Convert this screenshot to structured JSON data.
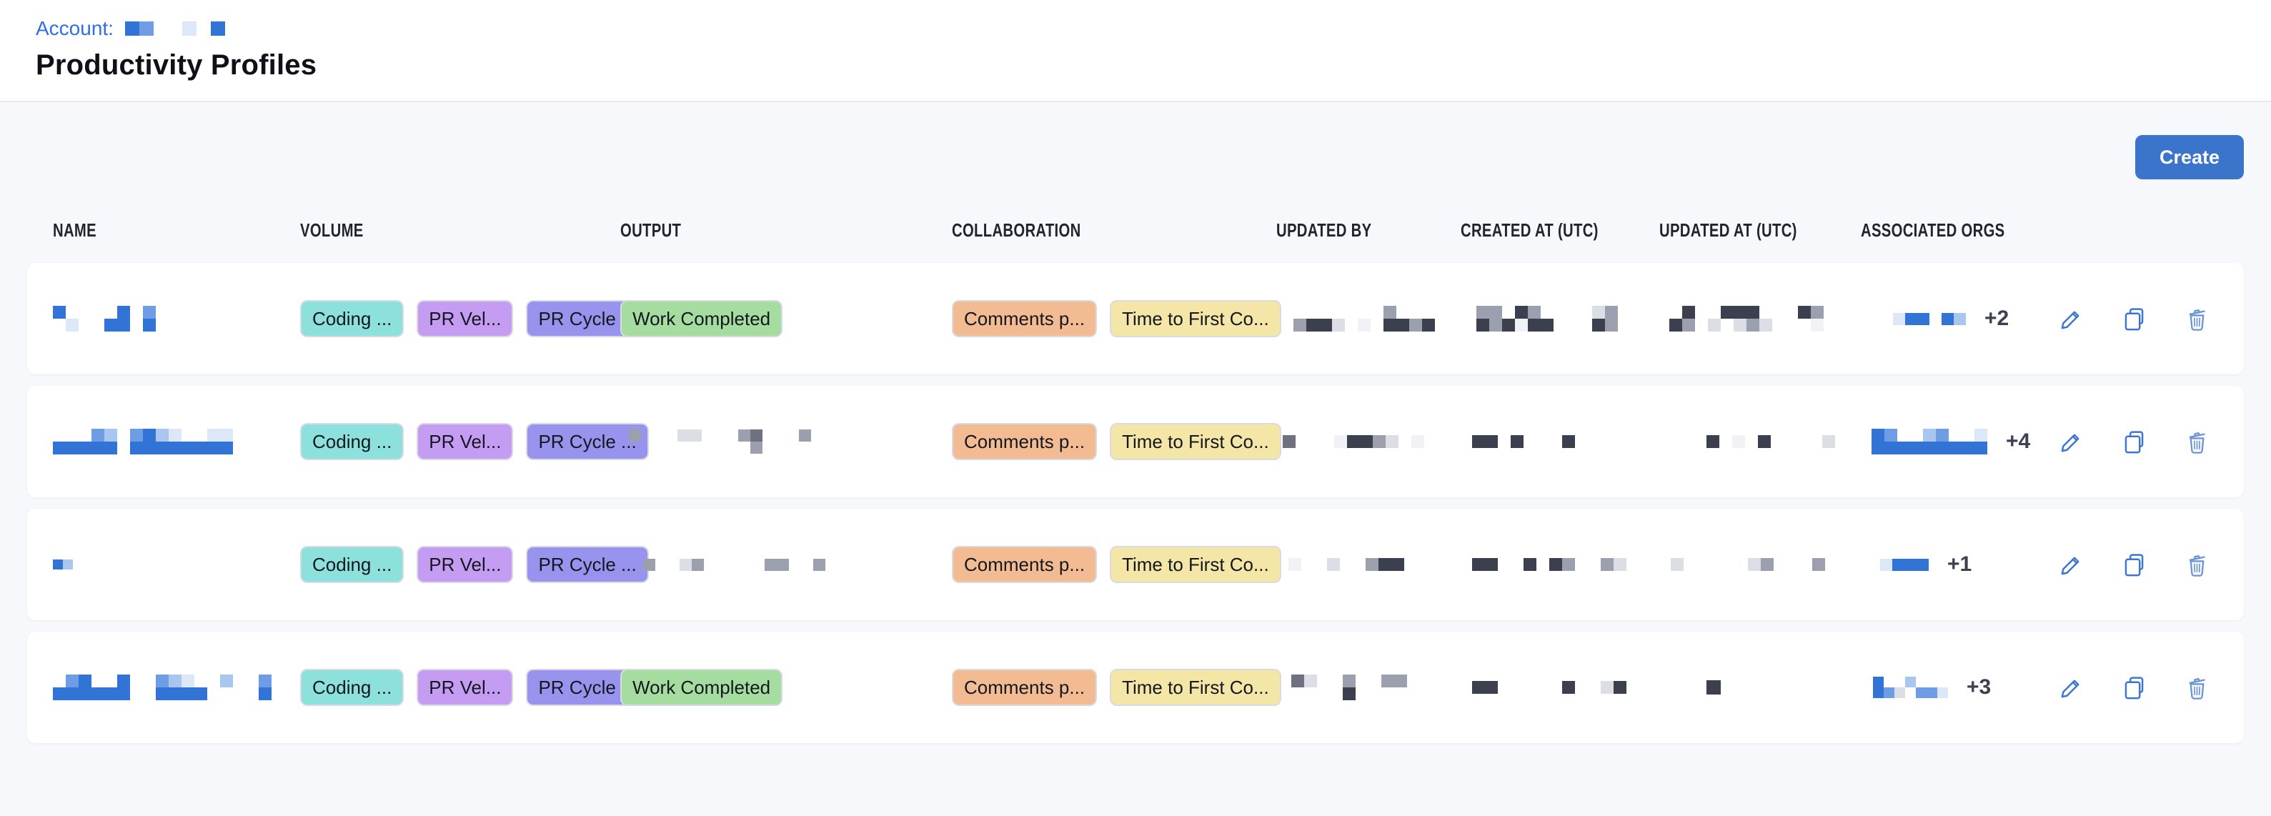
{
  "header": {
    "account_label": "Account:",
    "title": "Productivity Profiles"
  },
  "toolbar": {
    "create_label": "Create"
  },
  "colors": {
    "accent_blue": "#3b76d1",
    "link_blue": "#2f6fe0",
    "create_button_bg": "#3a74cb",
    "trash_blue": "#6a93d8",
    "tag_teal": "#8de1dc",
    "tag_purple": "#c49df3",
    "tag_periwinkle": "#9894ee",
    "tag_green": "#a5dda0",
    "tag_orange": "#f2bb92",
    "tag_yellow": "#f3e6a6"
  },
  "mosaic_palette": {
    "B": "#3273d6",
    "b": "#6f9de5",
    "l": "#a9c6ef",
    "p": "#dce8f8",
    "D": "#3c404e",
    "G": "#6e7280",
    "g": "#9b9fae",
    "e": "#dcdee6",
    "w": "#f1f2f5",
    ".": "transparent"
  },
  "account_redaction": {
    "cell": 20,
    "rows": [
      "Bb..p.B"
    ]
  },
  "table": {
    "columns": [
      {
        "key": "name",
        "label": "NAME"
      },
      {
        "key": "volume",
        "label": "VOLUME"
      },
      {
        "key": "output",
        "label": "OUTPUT"
      },
      {
        "key": "collab",
        "label": "COLLABORATION"
      },
      {
        "key": "updatedby",
        "label": "UPDATED BY"
      },
      {
        "key": "created",
        "label": "CREATED AT (UTC)"
      },
      {
        "key": "updated",
        "label": "UPDATED AT (UTC)"
      },
      {
        "key": "orgs",
        "label": "ASSOCIATED ORGS"
      }
    ],
    "action_icons": [
      "edit-pencil-icon",
      "duplicate-copy-icon",
      "delete-trash-icon"
    ]
  },
  "rows": [
    {
      "name_redaction": {
        "cell": 18,
        "offset": 0,
        "rows": [
          "B....B.b",
          ".p..BB.B"
        ]
      },
      "volume_tags": [
        {
          "label": "Coding ...",
          "color": "tag_teal"
        },
        {
          "label": "PR Vel...",
          "color": "tag_purple"
        },
        {
          "label": "PR Cycle ...",
          "color": "tag_periwinkle"
        }
      ],
      "output_tags": [
        {
          "label": "Work Completed",
          "color": "tag_green"
        }
      ],
      "output_redaction": null,
      "collaboration_tags": [
        {
          "label": "Comments p...",
          "color": "tag_orange"
        },
        {
          "label": "Time to First Co...",
          "color": "tag_yellow"
        }
      ],
      "updated_by_redaction": {
        "cell": 18,
        "offset": 24,
        "rows": [
          ".......g....",
          "gDDe.w.DDgD."
        ]
      },
      "created_at_redaction": {
        "cell": 18,
        "offset": 22,
        "rows": [
          "gg.Dg....eg.",
          "DgDwDD...Dg."
        ]
      },
      "updated_at_redaction": {
        "cell": 18,
        "offset": 14,
        "rows": [
          ".D..DDD...Dg",
          "Dg.e.ege...w"
        ]
      },
      "orgs_redaction": {
        "cell": 17,
        "offset": 45,
        "rows": [
          "pBB.Bl"
        ]
      },
      "orgs_more": "+2"
    },
    {
      "name_redaction": {
        "cell": 18,
        "offset": 0,
        "rows": [
          "...bl.bBlp..pp",
          "BBBBB.BBBBBBBB"
        ]
      },
      "volume_tags": [
        {
          "label": "Coding ...",
          "color": "tag_teal"
        },
        {
          "label": "PR Vel...",
          "color": "tag_purple"
        },
        {
          "label": "PR Cycle ...",
          "color": "tag_periwinkle"
        }
      ],
      "output_tags": [],
      "output_redaction": {
        "cell": 17,
        "offset": 12,
        "rows": [
          "g...ee...gG...g.",
          "..........g....."
        ]
      },
      "collaboration_tags": [
        {
          "label": "Comments p...",
          "color": "tag_orange"
        },
        {
          "label": "Time to First Co...",
          "color": "tag_yellow"
        }
      ],
      "updated_by_redaction": {
        "cell": 18,
        "offset": 9,
        "rows": [
          "G...wDDge.w."
        ]
      },
      "created_at_redaction": {
        "cell": 18,
        "offset": 16,
        "rows": [
          "DD.D...D"
        ]
      },
      "updated_at_redaction": {
        "cell": 18,
        "offset": 66,
        "rows": [
          "D.w.D....e"
        ]
      },
      "orgs_redaction": {
        "cell": 18,
        "offset": 15,
        "rows": [
          "Bb..lb..p",
          "BBBBBBBBB"
        ]
      },
      "orgs_more": "+4"
    },
    {
      "name_redaction": {
        "cell": 14,
        "offset": 0,
        "rows": [
          "Bl"
        ]
      },
      "volume_tags": [
        {
          "label": "Coding ...",
          "color": "tag_teal"
        },
        {
          "label": "PR Vel...",
          "color": "tag_purple"
        },
        {
          "label": "PR Cycle ...",
          "color": "tag_periwinkle"
        }
      ],
      "output_tags": [],
      "output_redaction": {
        "cell": 17,
        "offset": 32,
        "rows": [
          "g..eg.....gg..g"
        ]
      },
      "collaboration_tags": [
        {
          "label": "Comments p...",
          "color": "tag_orange"
        },
        {
          "label": "Time to First Co...",
          "color": "tag_yellow"
        }
      ],
      "updated_by_redaction": {
        "cell": 18,
        "offset": 17,
        "rows": [
          "w..e..gDD"
        ]
      },
      "created_at_redaction": {
        "cell": 18,
        "offset": 16,
        "rows": [
          "DD..D.Dg..ge"
        ]
      },
      "updated_at_redaction": {
        "cell": 18,
        "offset": 16,
        "rows": [
          "e.....eg...g"
        ]
      },
      "orgs_redaction": {
        "cell": 17,
        "offset": 27,
        "rows": [
          "pBBB"
        ]
      },
      "orgs_more": "+1"
    },
    {
      "name_redaction": {
        "cell": 18,
        "offset": 0,
        "rows": [
          ".bB..B..blp..l..b",
          "BBBBBB..BBBB....B"
        ]
      },
      "volume_tags": [
        {
          "label": "Coding ...",
          "color": "tag_teal"
        },
        {
          "label": "PR Vel...",
          "color": "tag_purple"
        },
        {
          "label": "PR Cycle ...",
          "color": "tag_periwinkle"
        }
      ],
      "output_tags": [
        {
          "label": "Work Completed",
          "color": "tag_green"
        }
      ],
      "output_redaction": null,
      "collaboration_tags": [
        {
          "label": "Comments p...",
          "color": "tag_orange"
        },
        {
          "label": "Time to First Co...",
          "color": "tag_yellow"
        }
      ],
      "updated_by_redaction": {
        "cell": 18,
        "offset": 21,
        "rows": [
          "Ge..g..gg...",
          "....D......."
        ]
      },
      "created_at_redaction": {
        "cell": 18,
        "offset": 16,
        "rows": [
          "DD.....D..eD"
        ]
      },
      "updated_at_redaction": {
        "cell": 20,
        "offset": 66,
        "rows": [
          "D"
        ]
      },
      "orgs_redaction": {
        "cell": 15,
        "offset": 17,
        "rows": [
          "B..l...",
          "Bbe.bbp"
        ]
      },
      "orgs_more": "+3"
    }
  ]
}
